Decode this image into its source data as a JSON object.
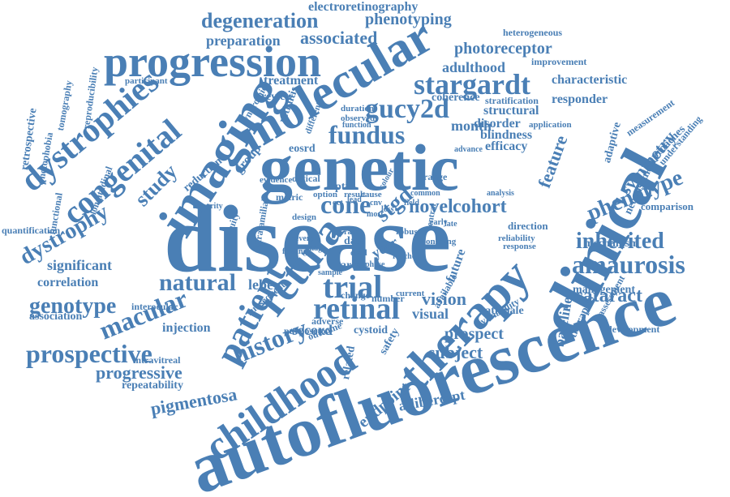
{
  "colors": {
    "word": "#4a7fb5",
    "background": "#ffffff"
  },
  "words": [
    "disease",
    "genetic",
    "autofluorescence",
    "clinical",
    "molecular",
    "imaging",
    "progression",
    "therapy",
    "retina",
    "childhood",
    "patient",
    "dystrophies",
    "congenital",
    "retinal",
    "stargardt",
    "fundus",
    "gucy2d",
    "trial",
    "natural",
    "amaurosis",
    "inherited",
    "macular",
    "prospective",
    "history",
    "phenotype",
    "dystrophy",
    "cone",
    "stgd",
    "novel",
    "cohort",
    "degeneration",
    "associated",
    "preparation",
    "phenotyping",
    "electroretinography",
    "photoreceptor",
    "adulthood",
    "heterogeneous",
    "treatment",
    "study",
    "genotype",
    "significant",
    "correlation",
    "cataract",
    "management",
    "mechanism",
    "comparison",
    "feature",
    "symmetry",
    "neovascular",
    "approaches",
    "understanding",
    "measurement",
    "adaptive",
    "blindness",
    "efficacy",
    "disorder",
    "structural",
    "month",
    "responder",
    "characteristic",
    "improvement",
    "stratification",
    "coherence",
    "review",
    "eosrd",
    "group",
    "reduction",
    "retinitis",
    "tomography",
    "photophobia",
    "retrospective",
    "reproducibility",
    "quantification",
    "functional",
    "longitudinal",
    "association",
    "injection",
    "intravitreal",
    "repeatability",
    "pigmentosa",
    "progressive",
    "subject",
    "prospect",
    "baseline",
    "therapies",
    "assessment",
    "development",
    "aflibercept",
    "endpoint",
    "related",
    "safety",
    "secord",
    "leber",
    "vision",
    "visual",
    "future",
    "rationale",
    "variability",
    "number",
    "change",
    "subsequent",
    "adverse",
    "outcome",
    "purposeto",
    "cystoid",
    "interocular",
    "acuity",
    "intrafamilial",
    "year",
    "area",
    "optic",
    "range",
    "common",
    "analysis",
    "direction",
    "reliability",
    "response",
    "optical",
    "evidence",
    "metric",
    "integrity",
    "syndromic",
    "participant",
    "different",
    "duration",
    "observed",
    "function",
    "application",
    "advance",
    "ongoing",
    "central",
    "available",
    "finding",
    "severe",
    "design",
    "image",
    "option",
    "result",
    "cause",
    "colour",
    "most",
    "data",
    "robust",
    "loss",
    "rate",
    "dead",
    "reached",
    "current",
    "phase",
    "sample",
    "lead",
    "cnv",
    "oct",
    "field",
    "early",
    "late"
  ]
}
